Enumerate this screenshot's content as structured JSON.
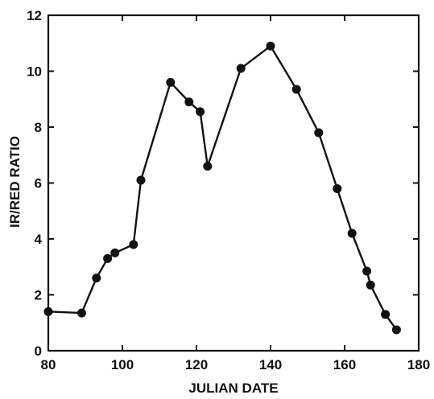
{
  "chart_data": {
    "type": "line",
    "title": "",
    "xlabel": "JULIAN DATE",
    "ylabel": "IR/RED RATIO",
    "xlim": [
      80,
      180
    ],
    "ylim": [
      0,
      12
    ],
    "xticks": [
      80,
      100,
      120,
      140,
      160,
      180
    ],
    "yticks": [
      0,
      2,
      4,
      6,
      8,
      10,
      12
    ],
    "grid": false,
    "legend": "none",
    "series": [
      {
        "x": [
          80,
          89,
          93,
          96,
          98,
          103,
          105,
          113,
          118,
          121,
          123,
          132,
          140,
          147,
          153,
          158,
          162,
          166,
          167,
          171,
          174
        ],
        "y": [
          1.4,
          1.35,
          2.6,
          3.3,
          3.5,
          3.8,
          6.1,
          9.6,
          8.9,
          8.55,
          6.6,
          10.1,
          10.9,
          9.35,
          7.8,
          5.8,
          4.2,
          2.85,
          2.35,
          1.3,
          0.75
        ]
      }
    ],
    "colors": {
      "line": "#111111",
      "marker": "#111111",
      "axis": "#111111"
    }
  }
}
